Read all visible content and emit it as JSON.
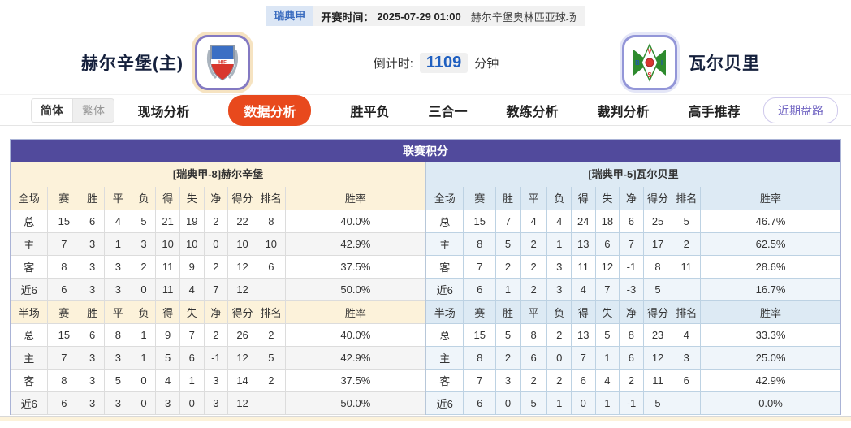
{
  "top_bar": {
    "league": "瑞典甲",
    "kickoff_label": "开赛时间：",
    "kickoff_time": "2025-07-29 01:00",
    "venue": "赫尔辛堡奥林匹亚球场"
  },
  "match_header": {
    "home_name": "赫尔辛堡(主)",
    "away_name": "瓦尔贝里",
    "countdown_label": "倒计时:",
    "countdown_value": "1109",
    "countdown_unit": "分钟"
  },
  "nav": {
    "lang": [
      {
        "label": "简体",
        "name": "lang-simplified",
        "active": true
      },
      {
        "label": "繁体",
        "name": "lang-traditional",
        "active": false
      }
    ],
    "tabs": [
      {
        "label": "现场分析",
        "name": "tab-live-analysis",
        "active": false
      },
      {
        "label": "数据分析",
        "name": "tab-data-analysis",
        "active": true
      },
      {
        "label": "胜平负",
        "name": "tab-win-draw-lose",
        "active": false
      },
      {
        "label": "三合一",
        "name": "tab-three-in-one",
        "active": false
      },
      {
        "label": "教练分析",
        "name": "tab-coach-analysis",
        "active": false
      },
      {
        "label": "裁判分析",
        "name": "tab-referee-analysis",
        "active": false
      },
      {
        "label": "高手推荐",
        "name": "tab-expert-picks",
        "active": false
      }
    ],
    "recent_button": "近期盘路"
  },
  "section": {
    "title": "联赛积分"
  },
  "league_table": {
    "home": {
      "title": "[瑞典甲-8]赫尔辛堡",
      "full": {
        "headers": [
          "全场",
          "赛",
          "胜",
          "平",
          "负",
          "得",
          "失",
          "净",
          "得分",
          "排名",
          "胜率"
        ],
        "rows": [
          {
            "label": "总",
            "type": "total",
            "cells": [
              "15",
              "6",
              "4",
              "5",
              "21",
              "19",
              "2",
              "22",
              "8",
              "40.0%"
            ]
          },
          {
            "label": "主",
            "type": "home",
            "cells": [
              "7",
              "3",
              "1",
              "3",
              "10",
              "10",
              "0",
              "10",
              "10",
              "42.9%"
            ]
          },
          {
            "label": "客",
            "type": "away",
            "cells": [
              "8",
              "3",
              "3",
              "2",
              "11",
              "9",
              "2",
              "12",
              "6",
              "37.5%"
            ]
          },
          {
            "label": "近6",
            "type": "recent",
            "cells": [
              "6",
              "3",
              "3",
              "0",
              "11",
              "4",
              "7",
              "12",
              "",
              "50.0%"
            ]
          }
        ]
      },
      "half": {
        "headers": [
          "半场",
          "赛",
          "胜",
          "平",
          "负",
          "得",
          "失",
          "净",
          "得分",
          "排名",
          "胜率"
        ],
        "rows": [
          {
            "label": "总",
            "type": "total",
            "cells": [
              "15",
              "6",
              "8",
              "1",
              "9",
              "7",
              "2",
              "26",
              "2",
              "40.0%"
            ]
          },
          {
            "label": "主",
            "type": "home",
            "cells": [
              "7",
              "3",
              "3",
              "1",
              "5",
              "6",
              "-1",
              "12",
              "5",
              "42.9%"
            ]
          },
          {
            "label": "客",
            "type": "away",
            "cells": [
              "8",
              "3",
              "5",
              "0",
              "4",
              "1",
              "3",
              "14",
              "2",
              "37.5%"
            ]
          },
          {
            "label": "近6",
            "type": "recent",
            "cells": [
              "6",
              "3",
              "3",
              "0",
              "3",
              "0",
              "3",
              "12",
              "",
              "50.0%"
            ]
          }
        ]
      }
    },
    "away": {
      "title": "[瑞典甲-5]瓦尔贝里",
      "full": {
        "headers": [
          "全场",
          "赛",
          "胜",
          "平",
          "负",
          "得",
          "失",
          "净",
          "得分",
          "排名",
          "胜率"
        ],
        "rows": [
          {
            "label": "总",
            "type": "total",
            "cells": [
              "15",
              "7",
              "4",
              "4",
              "24",
              "18",
              "6",
              "25",
              "5",
              "46.7%"
            ]
          },
          {
            "label": "主",
            "type": "home",
            "cells": [
              "8",
              "5",
              "2",
              "1",
              "13",
              "6",
              "7",
              "17",
              "2",
              "62.5%"
            ]
          },
          {
            "label": "客",
            "type": "away",
            "cells": [
              "7",
              "2",
              "2",
              "3",
              "11",
              "12",
              "-1",
              "8",
              "11",
              "28.6%"
            ]
          },
          {
            "label": "近6",
            "type": "recent",
            "cells": [
              "6",
              "1",
              "2",
              "3",
              "4",
              "7",
              "-3",
              "5",
              "",
              "16.7%"
            ]
          }
        ]
      },
      "half": {
        "headers": [
          "半场",
          "赛",
          "胜",
          "平",
          "负",
          "得",
          "失",
          "净",
          "得分",
          "排名",
          "胜率"
        ],
        "rows": [
          {
            "label": "总",
            "type": "total",
            "cells": [
              "15",
              "5",
              "8",
              "2",
              "13",
              "5",
              "8",
              "23",
              "4",
              "33.3%"
            ]
          },
          {
            "label": "主",
            "type": "home",
            "cells": [
              "8",
              "2",
              "6",
              "0",
              "7",
              "1",
              "6",
              "12",
              "3",
              "25.0%"
            ]
          },
          {
            "label": "客",
            "type": "away",
            "cells": [
              "7",
              "3",
              "2",
              "2",
              "6",
              "4",
              "2",
              "11",
              "6",
              "42.9%"
            ]
          },
          {
            "label": "近6",
            "type": "recent",
            "cells": [
              "6",
              "0",
              "5",
              "1",
              "0",
              "1",
              "-1",
              "5",
              "",
              "0.0%"
            ]
          }
        ]
      }
    }
  },
  "colors": {
    "accent_orange": "#e8491d",
    "header_purple": "#514a9c",
    "home_tint": "#fcf2da",
    "away_tint": "#ddeaf4",
    "home_row_red": "#d42a2a",
    "away_row_blue": "#2b3cc4",
    "countdown_blue": "#1f5fc0",
    "badge_blue_bg": "#dbe6f5",
    "badge_blue_text": "#3a6cbf"
  }
}
